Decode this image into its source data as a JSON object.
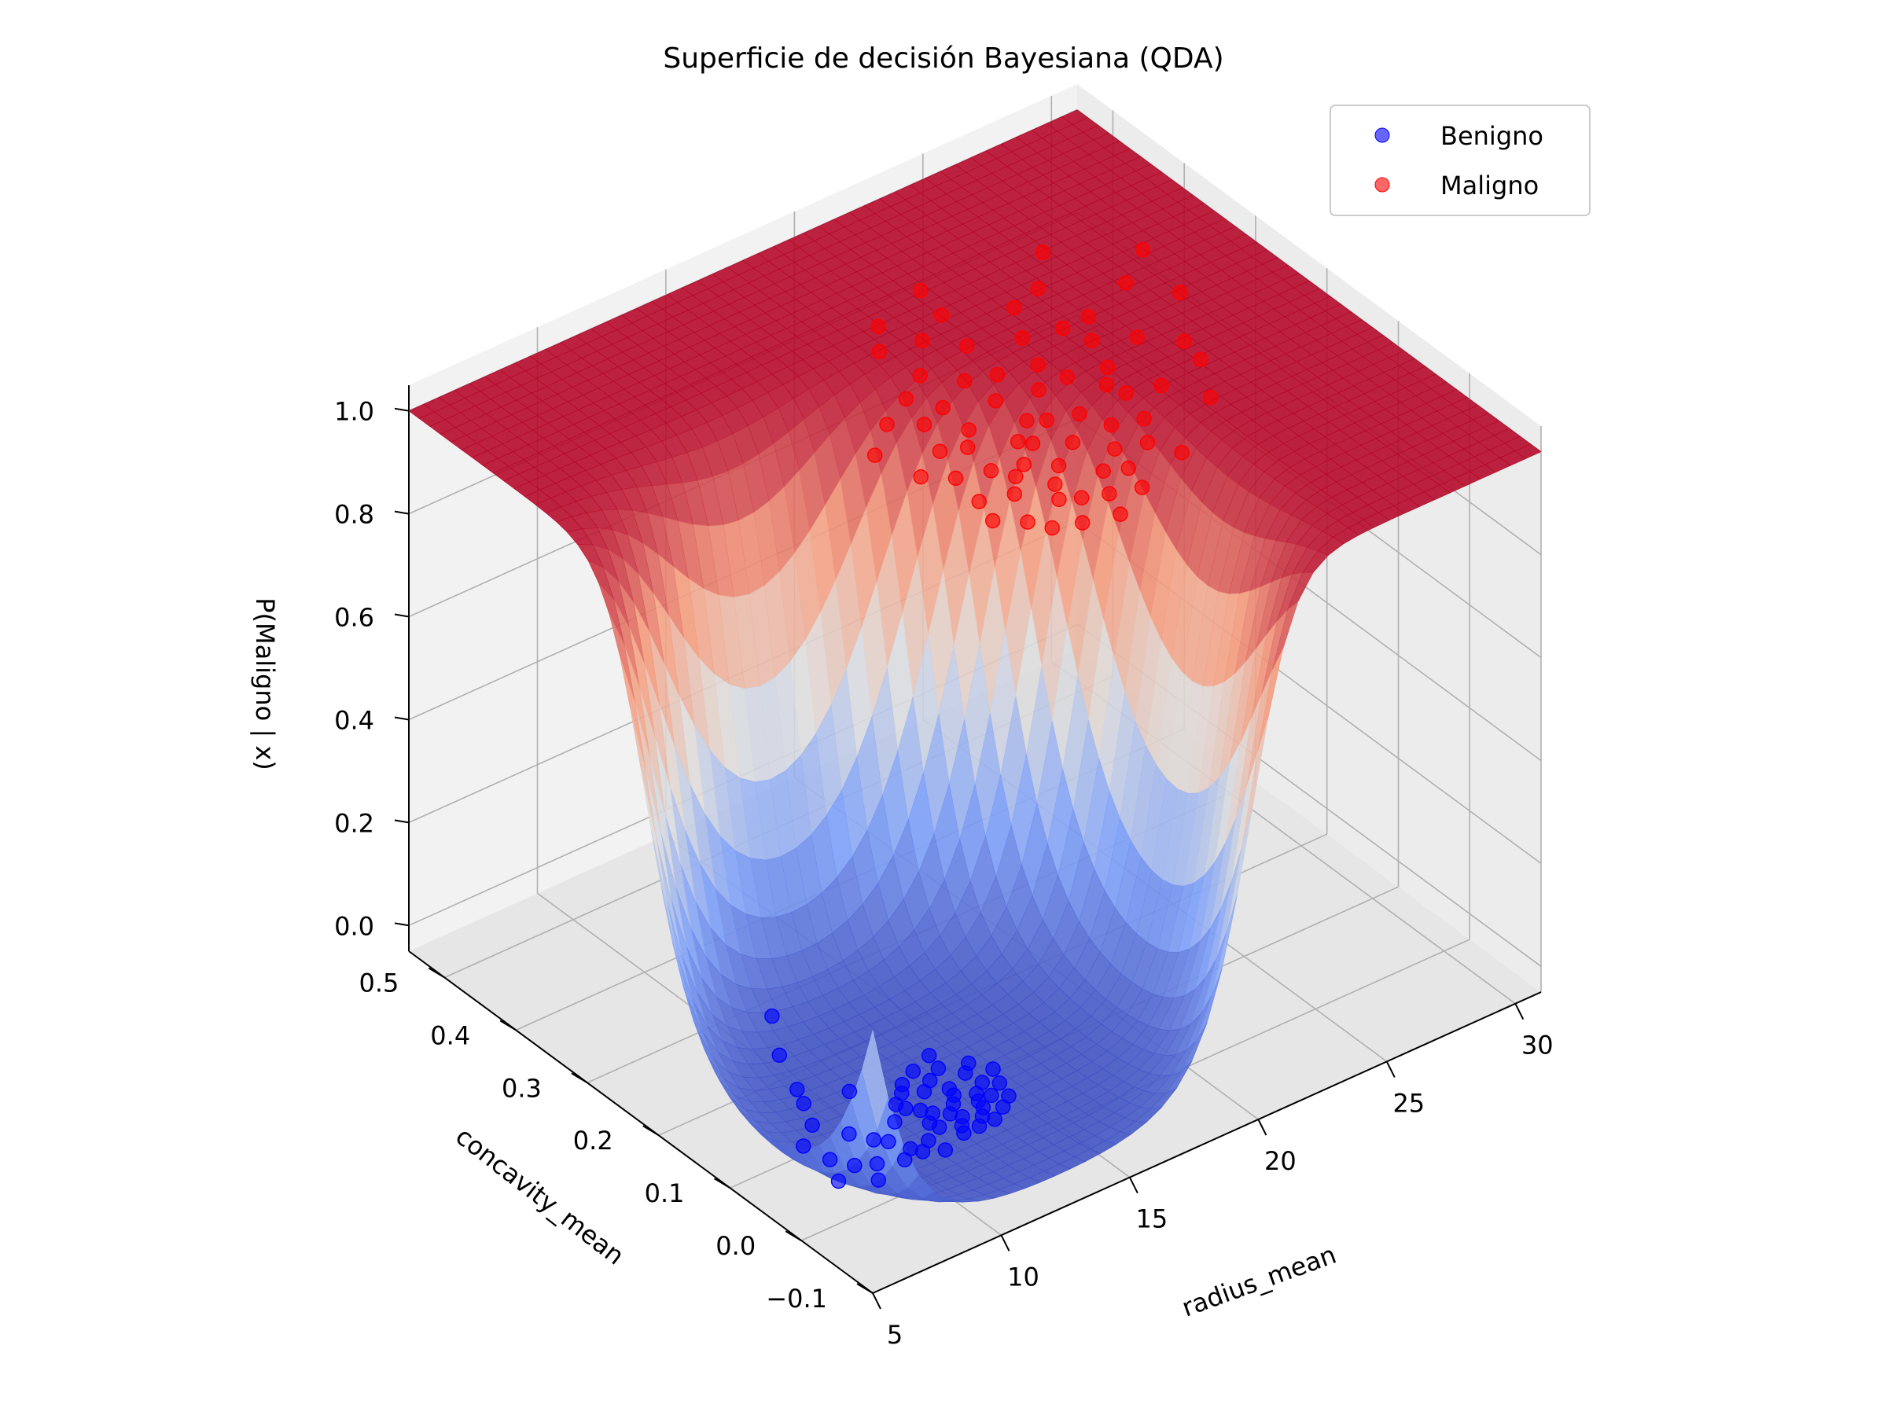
{
  "chart_data": {
    "type": "surface3d",
    "title": "Superficie de decisión Bayesiana (QDA)",
    "xlabel": "radius_mean",
    "ylabel": "concavity_mean",
    "zlabel": "P(Maligno | x)",
    "xlim": [
      5,
      31
    ],
    "ylim": [
      -0.1,
      0.55
    ],
    "zlim": [
      -0.05,
      1.05
    ],
    "x_ticks": [
      "5",
      "10",
      "15",
      "20",
      "25",
      "30"
    ],
    "y_ticks": [
      "−0.1",
      "0.0",
      "0.1",
      "0.2",
      "0.3",
      "0.4",
      "0.5"
    ],
    "z_ticks": [
      "0.0",
      "0.2",
      "0.4",
      "0.6",
      "0.8",
      "1.0"
    ],
    "x_tick_values": [
      5,
      10,
      15,
      20,
      25,
      30
    ],
    "y_tick_values": [
      -0.1,
      0.0,
      0.1,
      0.2,
      0.3,
      0.4,
      0.5
    ],
    "z_tick_values": [
      0.0,
      0.2,
      0.4,
      0.6,
      0.8,
      1.0
    ],
    "colormap": "coolwarm",
    "legend_position": "upper-right",
    "series": [
      {
        "name": "Benigno",
        "color": "#0000ff",
        "points": [
          [
            10.8,
            0.25
          ],
          [
            10.2,
            0.12
          ],
          [
            11.5,
            0.05
          ],
          [
            12.1,
            0.03
          ],
          [
            10.5,
            0.02
          ],
          [
            11.0,
            0.07
          ],
          [
            12.5,
            0.09
          ],
          [
            13.0,
            0.04
          ],
          [
            11.8,
            0.02
          ],
          [
            12.3,
            0.05
          ],
          [
            13.4,
            0.02
          ],
          [
            12.8,
            0.01
          ],
          [
            11.2,
            0.03
          ],
          [
            10.0,
            0.01
          ],
          [
            13.7,
            0.06
          ],
          [
            12.0,
            0.08
          ],
          [
            11.6,
            0.01
          ],
          [
            12.9,
            0.03
          ],
          [
            13.2,
            0.05
          ],
          [
            11.9,
            0.04
          ],
          [
            10.6,
            0.0
          ],
          [
            9.8,
            0.02
          ],
          [
            12.6,
            0.02
          ],
          [
            13.9,
            0.03
          ],
          [
            14.1,
            0.05
          ],
          [
            12.2,
            0.01
          ],
          [
            11.3,
            0.06
          ],
          [
            13.5,
            0.04
          ],
          [
            12.7,
            0.07
          ],
          [
            11.1,
            0.04
          ],
          [
            8.5,
            0.02
          ],
          [
            9.2,
            0.05
          ],
          [
            8.2,
            0.1
          ],
          [
            9.0,
            0.15
          ],
          [
            8.0,
            0.0
          ],
          [
            9.5,
            0.04
          ],
          [
            10.3,
            0.06
          ],
          [
            7.9,
            0.03
          ],
          [
            8.8,
            0.07
          ],
          [
            9.3,
            0.01
          ],
          [
            14.4,
            0.07
          ],
          [
            13.1,
            0.1
          ],
          [
            12.4,
            0.11
          ],
          [
            14.0,
            0.09
          ],
          [
            11.4,
            0.09
          ],
          [
            13.6,
            0.08
          ],
          [
            12.6,
            0.06
          ],
          [
            11.7,
            0.1
          ],
          [
            10.9,
            0.08
          ],
          [
            13.3,
            0.12
          ],
          [
            7.0,
            0.02
          ],
          [
            7.5,
            0.05
          ],
          [
            8.7,
            0.13
          ],
          [
            9.7,
            0.2
          ],
          [
            7.3,
            0.08
          ]
        ]
      },
      {
        "name": "Maligno",
        "color": "#ff0000",
        "points": [
          [
            17.5,
            0.15
          ],
          [
            18.2,
            0.12
          ],
          [
            19.0,
            0.18
          ],
          [
            20.1,
            0.2
          ],
          [
            17.8,
            0.1
          ],
          [
            18.9,
            0.14
          ],
          [
            16.5,
            0.22
          ],
          [
            17.1,
            0.17
          ],
          [
            19.5,
            0.25
          ],
          [
            20.8,
            0.13
          ],
          [
            21.5,
            0.16
          ],
          [
            18.4,
            0.09
          ],
          [
            17.3,
            0.21
          ],
          [
            19.8,
            0.11
          ],
          [
            16.9,
            0.13
          ],
          [
            22.0,
            0.24
          ],
          [
            20.4,
            0.28
          ],
          [
            18.7,
            0.19
          ],
          [
            19.2,
            0.08
          ],
          [
            17.9,
            0.23
          ],
          [
            21.1,
            0.19
          ],
          [
            23.5,
            0.3
          ],
          [
            24.0,
            0.18
          ],
          [
            22.7,
            0.21
          ],
          [
            20.0,
            0.16
          ],
          [
            18.0,
            0.27
          ],
          [
            16.3,
            0.09
          ],
          [
            15.8,
            0.14
          ],
          [
            19.4,
            0.29
          ],
          [
            21.8,
            0.12
          ],
          [
            25.0,
            0.25
          ],
          [
            23.0,
            0.35
          ],
          [
            24.5,
            0.3
          ],
          [
            26.0,
            0.22
          ],
          [
            22.2,
            0.31
          ],
          [
            20.6,
            0.33
          ],
          [
            18.5,
            0.32
          ],
          [
            17.0,
            0.26
          ],
          [
            16.0,
            0.18
          ],
          [
            15.5,
            0.11
          ],
          [
            27.5,
            0.28
          ],
          [
            25.5,
            0.4
          ],
          [
            28.0,
            0.35
          ],
          [
            21.0,
            0.38
          ],
          [
            19.7,
            0.36
          ],
          [
            23.8,
            0.27
          ],
          [
            22.5,
            0.15
          ],
          [
            24.8,
            0.14
          ],
          [
            26.5,
            0.32
          ],
          [
            20.2,
            0.07
          ],
          [
            17.6,
            0.06
          ],
          [
            18.8,
            0.05
          ],
          [
            16.7,
            0.07
          ],
          [
            15.2,
            0.2
          ],
          [
            14.8,
            0.25
          ],
          [
            19.1,
            0.4
          ],
          [
            21.3,
            0.42
          ],
          [
            23.3,
            0.23
          ],
          [
            18.3,
            0.37
          ],
          [
            17.4,
            0.3
          ],
          [
            20.9,
            0.24
          ],
          [
            22.9,
            0.19
          ],
          [
            19.6,
            0.21
          ],
          [
            18.1,
            0.16
          ],
          [
            21.7,
            0.27
          ],
          [
            24.2,
            0.36
          ],
          [
            16.1,
            0.28
          ],
          [
            25.8,
            0.19
          ],
          [
            20.5,
            0.1
          ],
          [
            22.3,
            0.09
          ]
        ]
      }
    ]
  }
}
